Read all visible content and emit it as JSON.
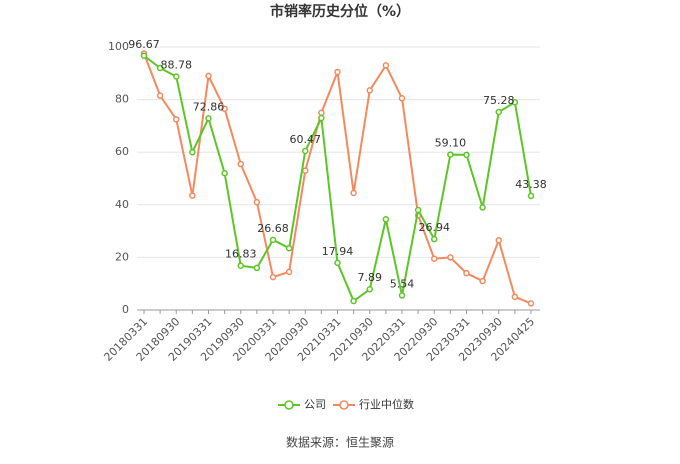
{
  "chart_data": {
    "type": "line",
    "title": "市销率历史分位（%）",
    "categories": [
      "20180331",
      null,
      "20180930",
      null,
      "20190331",
      null,
      "20190930",
      null,
      "20200331",
      null,
      "20200930",
      null,
      "20210331",
      null,
      "20210930",
      null,
      "20220331",
      null,
      "20220930",
      null,
      "20230331",
      null,
      "20230930",
      null,
      "20240425"
    ],
    "series": [
      {
        "name": "公司",
        "color": "#5cc626",
        "values": [
          96.67,
          92,
          88.78,
          60,
          72.86,
          52,
          16.83,
          16,
          26.68,
          23.5,
          60.47,
          73,
          17.94,
          3.4,
          7.89,
          34.5,
          5.54,
          38,
          26.94,
          59.1,
          59,
          39,
          75.28,
          79,
          43.38
        ],
        "value_labels": [
          "96.67",
          null,
          "88.78",
          null,
          "72.86",
          null,
          "16.83",
          null,
          "26.68",
          null,
          "60.47",
          null,
          "17.94",
          null,
          "7.89",
          null,
          "5.54",
          null,
          "26.94",
          "59.10",
          null,
          null,
          "75.28",
          null,
          "43.38"
        ]
      },
      {
        "name": "行业中位数",
        "color": "#f4895f",
        "values": [
          97.5,
          81.5,
          72.5,
          43.5,
          89,
          76.5,
          55.5,
          41,
          12.5,
          14.5,
          53,
          75,
          90.5,
          44.5,
          83.5,
          93,
          80.5,
          36,
          19.5,
          20,
          14,
          11,
          26.5,
          5,
          2.5
        ]
      }
    ],
    "ylim": [
      0,
      100
    ],
    "yticks": [
      0,
      20,
      40,
      60,
      80,
      100
    ],
    "grid": true,
    "legend": "bottom",
    "source": "数据来源：恒生聚源"
  }
}
